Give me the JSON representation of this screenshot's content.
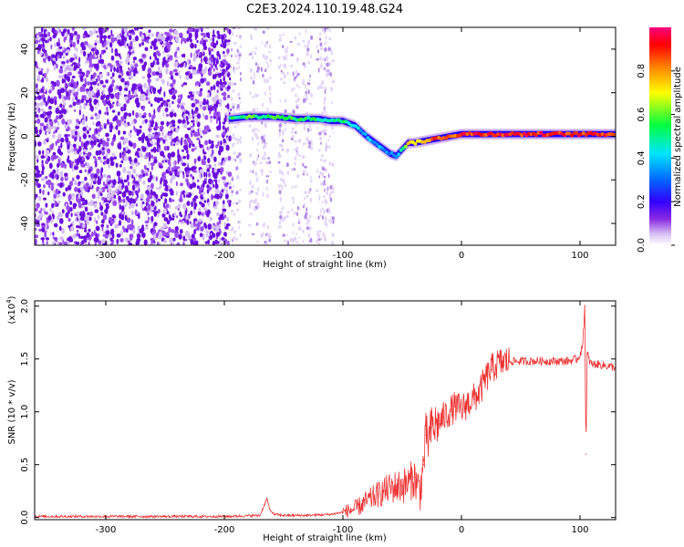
{
  "figure": {
    "title": "C2E3.2024.110.19.48.G24"
  },
  "colors": {
    "snr_line": "#ee3333",
    "colormap": [
      "#ffffff",
      "#e8d8f8",
      "#8a2be2",
      "#5500ff",
      "#0000ff",
      "#00ffff",
      "#00ff00",
      "#ffff00",
      "#ff8000",
      "#ff0000",
      "#ff0080"
    ]
  },
  "chart_data": [
    {
      "type": "heatmap",
      "title": "C2E3.2024.110.19.48.G24",
      "xlabel": "Height of straight line (km)",
      "ylabel": "Frequency (Hz)",
      "xlim": [
        -360,
        130
      ],
      "ylim": [
        -50,
        50
      ],
      "xticks": [
        "-300",
        "-200",
        "-100",
        "0",
        "100"
      ],
      "yticks": [
        "-40",
        "-20",
        "0",
        "20",
        "40"
      ],
      "colorbar": {
        "label": "Normalized spectral amplitude",
        "range": [
          0,
          1
        ],
        "ticks": [
          "0.0",
          "0.2",
          "0.4",
          "0.6",
          "0.8"
        ]
      },
      "noise_region": {
        "x": [
          -360,
          -195
        ],
        "y": [
          -50,
          50
        ]
      },
      "sparse_noise_region": {
        "x": [
          -195,
          -110
        ],
        "y": [
          -50,
          50
        ]
      },
      "signal_track": {
        "x": [
          -195,
          -180,
          -160,
          -140,
          -120,
          -110,
          -100,
          -90,
          -80,
          -70,
          -60,
          -55,
          -50,
          -45,
          -40,
          -30,
          -20,
          -10,
          0,
          20,
          40,
          60,
          80,
          100,
          130
        ],
        "y": [
          8,
          9,
          9,
          8,
          8,
          7,
          7,
          5,
          0,
          -4,
          -8,
          -9,
          -6,
          -3,
          -3,
          -2,
          -1,
          0,
          1,
          1,
          1,
          1,
          1,
          1,
          1
        ],
        "amplitude": [
          0.5,
          0.55,
          0.55,
          0.55,
          0.5,
          0.5,
          0.5,
          0.45,
          0.4,
          0.4,
          0.35,
          0.35,
          0.5,
          0.7,
          0.75,
          0.8,
          0.85,
          0.85,
          0.9,
          0.9,
          0.9,
          0.9,
          0.9,
          0.9,
          0.9
        ]
      }
    },
    {
      "type": "line",
      "xlabel": "Height of straight line (km)",
      "ylabel": "SNR (10 * v/v)",
      "y_multiplier": "(x10",
      "y_multiplier_exp": "4",
      "y_multiplier_close": ")",
      "xlim": [
        -360,
        130
      ],
      "ylim": [
        -0.02,
        2.05
      ],
      "xticks": [
        "-300",
        "-200",
        "-100",
        "0",
        "100"
      ],
      "yticks": [
        "0.0",
        "0.5",
        "1.0",
        "1.5",
        "2.0"
      ],
      "series": [
        {
          "x": [
            -360,
            -300,
            -250,
            -200,
            -170,
            -164,
            -162,
            -158,
            -150,
            -130,
            -110,
            -100,
            -90,
            -80,
            -70,
            -60,
            -50,
            -45,
            -40,
            -35,
            -32,
            -30,
            -28,
            -25,
            -20,
            -15,
            -10,
            -5,
            0,
            5,
            10,
            15,
            20,
            25,
            30,
            35,
            40,
            50,
            60,
            70,
            80,
            90,
            98,
            102,
            104,
            105,
            106,
            108,
            110,
            115,
            120,
            125,
            130
          ],
          "y": [
            0.01,
            0.01,
            0.01,
            0.01,
            0.02,
            0.18,
            0.08,
            0.03,
            0.02,
            0.02,
            0.03,
            0.05,
            0.08,
            0.15,
            0.22,
            0.28,
            0.3,
            0.32,
            0.38,
            0.25,
            0.5,
            0.78,
            0.72,
            0.85,
            0.88,
            0.95,
            1.0,
            1.05,
            1.02,
            1.08,
            1.12,
            1.18,
            1.3,
            1.4,
            1.45,
            1.47,
            1.48,
            1.48,
            1.48,
            1.48,
            1.48,
            1.48,
            1.5,
            1.6,
            2.0,
            0.6,
            1.55,
            1.48,
            1.45,
            1.45,
            1.44,
            1.43,
            1.42
          ]
        }
      ]
    }
  ]
}
